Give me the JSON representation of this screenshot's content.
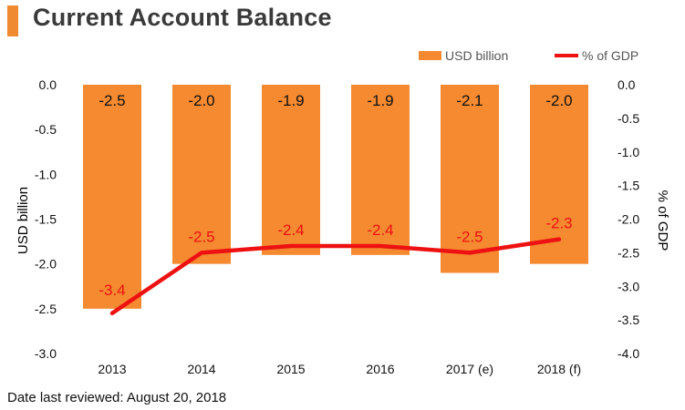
{
  "header": {
    "title": "Current Account Balance"
  },
  "footer": {
    "note": "Date last reviewed: August 20, 2018"
  },
  "colors": {
    "bar": "#f58a30",
    "line": "#ee1111",
    "accent": "#f08a30"
  },
  "chart_data": {
    "type": "bar",
    "categories": [
      "2013",
      "2014",
      "2015",
      "2016",
      "2017 (e)",
      "2018 (f)"
    ],
    "series": [
      {
        "name": "USD billion",
        "type": "bar",
        "axis": "left",
        "values": [
          -2.5,
          -2.0,
          -1.9,
          -1.9,
          -2.1,
          -2.0
        ]
      },
      {
        "name": "% of GDP",
        "type": "line",
        "axis": "right",
        "values": [
          -3.4,
          -2.5,
          -2.4,
          -2.4,
          -2.5,
          -2.3
        ]
      }
    ],
    "bar_labels": [
      "-2.5",
      "-2.0",
      "-1.9",
      "-1.9",
      "-2.1",
      "-2.0"
    ],
    "line_labels": [
      "-3.4",
      "-2.5",
      "-2.4",
      "-2.4",
      "-2.5",
      "-2.3"
    ],
    "ylabel": "USD billion",
    "ylabel_right": "% of GDP",
    "ylim": [
      -3.0,
      0.0
    ],
    "ylim_right": [
      -4.0,
      0.0
    ],
    "yticks": [
      "0.0",
      "-0.5",
      "-1.0",
      "-1.5",
      "-2.0",
      "-2.5",
      "-3.0"
    ],
    "yticks_right": [
      "0.0",
      "-0.5",
      "-1.0",
      "-1.5",
      "-2.0",
      "-2.5",
      "-3.0",
      "-3.5",
      "-4.0"
    ],
    "legend": {
      "position": "top-right",
      "bar_label": "USD billion",
      "line_label": "% of GDP"
    },
    "grid": false
  }
}
